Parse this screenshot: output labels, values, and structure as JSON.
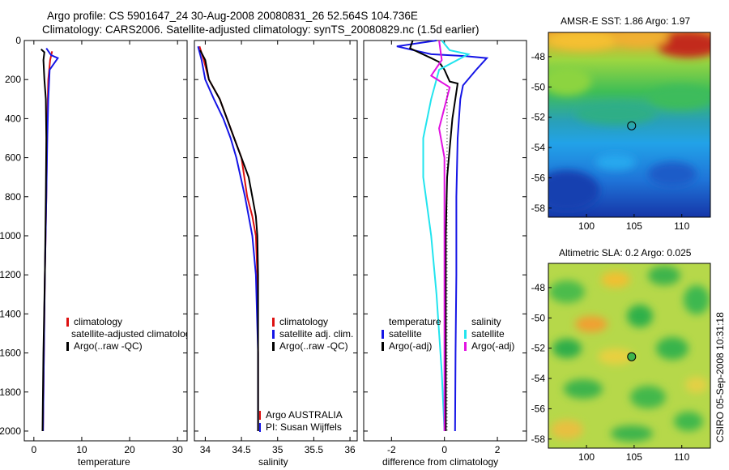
{
  "header": {
    "line1": "Argo profile: CS 5901647_24 30-Aug-2008 20080831_26 52.564S 104.736E",
    "line2": "Climatology: CARS2006. Satellite-adjusted climatology: synTS_20080829.nc (1.5d earlier)"
  },
  "stamp": "CSIRO 05-Sep-2008 10:31:18",
  "colors": {
    "red": "#dd1111",
    "blue": "#1515e6",
    "black": "#000000",
    "cyan": "#22e4ee",
    "magenta": "#e212e2"
  },
  "chart_data": [
    {
      "type": "line",
      "xlabel": "temperature",
      "x_ticks": [
        "0",
        "10",
        "20",
        "30"
      ],
      "xlim": [
        -2,
        32
      ],
      "ylim": [
        2050,
        0
      ],
      "y_ticks": [
        "0",
        "200",
        "400",
        "600",
        "800",
        "1000",
        "1200",
        "1400",
        "1600",
        "1800",
        "2000"
      ],
      "series": [
        {
          "name": "climatology",
          "color": "red",
          "points": [
            [
              3.8,
              55
            ],
            [
              3.4,
              100
            ],
            [
              3.0,
              200
            ],
            [
              2.8,
              400
            ],
            [
              2.6,
              800
            ],
            [
              2.3,
              1200
            ],
            [
              2.1,
              1600
            ],
            [
              1.9,
              2000
            ]
          ]
        },
        {
          "name": "satellite-adjusted climatology",
          "color": "blue",
          "points": [
            [
              2.6,
              40
            ],
            [
              3.6,
              75
            ],
            [
              5.0,
              90
            ],
            [
              3.3,
              150
            ],
            [
              3.0,
              300
            ],
            [
              2.8,
              500
            ],
            [
              2.6,
              800
            ],
            [
              2.3,
              1200
            ],
            [
              2.1,
              1600
            ],
            [
              1.9,
              2000
            ]
          ]
        },
        {
          "name": "Argo(..raw -QC)",
          "color": "black",
          "points": [
            [
              1.5,
              45
            ],
            [
              2.2,
              60
            ],
            [
              2.0,
              100
            ],
            [
              2.2,
              200
            ],
            [
              2.5,
              300
            ],
            [
              2.6,
              500
            ],
            [
              2.5,
              800
            ],
            [
              2.3,
              1200
            ],
            [
              2.0,
              1600
            ],
            [
              1.8,
              2000
            ]
          ]
        }
      ],
      "legend": {
        "entries": [
          "climatology",
          "satellite-adjusted climatology",
          "Argo(..raw -QC)"
        ]
      }
    },
    {
      "type": "line",
      "xlabel": "salinity",
      "x_ticks": [
        "34",
        "34.5",
        "35",
        "35.5",
        "36"
      ],
      "xlim": [
        33.85,
        36.1
      ],
      "ylim": [
        2050,
        0
      ],
      "y_ticks": [
        "0",
        "200",
        "400",
        "600",
        "800",
        "1000",
        "1200",
        "1400",
        "1600",
        "1800",
        "2000"
      ],
      "series": [
        {
          "name": "climatology",
          "color": "red",
          "points": [
            [
              33.92,
              30
            ],
            [
              33.98,
              100
            ],
            [
              34.05,
              200
            ],
            [
              34.2,
              300
            ],
            [
              34.3,
              400
            ],
            [
              34.4,
              500
            ],
            [
              34.5,
              600
            ],
            [
              34.58,
              800
            ],
            [
              34.65,
              900
            ],
            [
              34.7,
              1000
            ],
            [
              34.72,
              1200
            ],
            [
              34.73,
              1600
            ],
            [
              34.73,
              2000
            ]
          ]
        },
        {
          "name": "satellite adj. clim.",
          "color": "blue",
          "points": [
            [
              33.9,
              30
            ],
            [
              33.95,
              100
            ],
            [
              34.0,
              200
            ],
            [
              34.12,
              300
            ],
            [
              34.25,
              400
            ],
            [
              34.35,
              500
            ],
            [
              34.43,
              600
            ],
            [
              34.55,
              800
            ],
            [
              34.65,
              1000
            ],
            [
              34.7,
              1200
            ],
            [
              34.73,
              1600
            ],
            [
              34.73,
              2000
            ]
          ]
        },
        {
          "name": "Argo(..raw -QC)",
          "color": "black",
          "points": [
            [
              33.93,
              50
            ],
            [
              34.0,
              100
            ],
            [
              34.05,
              200
            ],
            [
              34.2,
              300
            ],
            [
              34.3,
              400
            ],
            [
              34.4,
              500
            ],
            [
              34.5,
              600
            ],
            [
              34.6,
              700
            ],
            [
              34.65,
              800
            ],
            [
              34.7,
              900
            ],
            [
              34.72,
              1000
            ],
            [
              34.73,
              1200
            ],
            [
              34.73,
              1600
            ],
            [
              34.73,
              2000
            ]
          ]
        }
      ],
      "legend": {
        "entries": [
          "climatology",
          "satellite adj. clim.",
          "Argo(..raw -QC)"
        ]
      },
      "annotation": {
        "line1": "Argo AUSTRALIA",
        "line2": "PI: Susan Wijffels"
      }
    },
    {
      "type": "line",
      "xlabel": "difference from climatology",
      "x_ticks": [
        "-2",
        "0",
        "2"
      ],
      "xlim": [
        -3.05,
        3.1
      ],
      "ylim": [
        2050,
        0
      ],
      "y_ticks": [
        "0",
        "200",
        "400",
        "600",
        "800",
        "1000",
        "1200",
        "1400",
        "1600",
        "1800",
        "2000"
      ],
      "series": [
        {
          "name": "temperature satellite",
          "color": "blue",
          "points": [
            [
              -0.3,
              0
            ],
            [
              -1.8,
              30
            ],
            [
              -0.5,
              70
            ],
            [
              0.8,
              80
            ],
            [
              1.6,
              90
            ],
            [
              1.2,
              150
            ],
            [
              0.7,
              230
            ],
            [
              0.6,
              300
            ],
            [
              0.5,
              500
            ],
            [
              0.45,
              800
            ],
            [
              0.45,
              1200
            ],
            [
              0.42,
              1600
            ],
            [
              0.4,
              2000
            ]
          ]
        },
        {
          "name": "temperature Argo(-adj)",
          "color": "black",
          "points": [
            [
              -1.2,
              0
            ],
            [
              -1.3,
              40
            ],
            [
              -0.5,
              90
            ],
            [
              -0.2,
              110
            ],
            [
              0.0,
              150
            ],
            [
              0.2,
              210
            ],
            [
              0.5,
              220
            ],
            [
              0.3,
              400
            ],
            [
              0.1,
              700
            ],
            [
              0.05,
              1000
            ],
            [
              0.05,
              1400
            ],
            [
              0.05,
              2000
            ]
          ]
        },
        {
          "name": "salinity satellite",
          "color": "cyan",
          "points": [
            [
              -0.1,
              0
            ],
            [
              0.2,
              50
            ],
            [
              0.9,
              70
            ],
            [
              -0.2,
              150
            ],
            [
              -0.5,
              300
            ],
            [
              -0.8,
              500
            ],
            [
              -0.8,
              700
            ],
            [
              -0.5,
              1000
            ],
            [
              -0.3,
              1300
            ],
            [
              -0.1,
              1700
            ],
            [
              0.0,
              2000
            ]
          ]
        },
        {
          "name": "salinity Argo(-adj)",
          "color": "magenta",
          "points": [
            [
              -0.2,
              0
            ],
            [
              -0.1,
              100
            ],
            [
              -0.5,
              180
            ],
            [
              0.2,
              240
            ],
            [
              -0.2,
              450
            ],
            [
              0.0,
              600
            ],
            [
              0.0,
              900
            ],
            [
              0.0,
              1400
            ],
            [
              0.0,
              2000
            ]
          ]
        }
      ],
      "legend": {
        "temp_header": "temperature",
        "sal_header": "salinity",
        "temp_entries": [
          "satellite",
          "Argo(-adj)"
        ],
        "sal_entries": [
          "satellite",
          "Argo(-adj)"
        ]
      }
    },
    {
      "type": "heatmap",
      "title": "AMSR-E SST: 1.86 Argo: 1.97",
      "x_ticks": [
        "100",
        "105",
        "110"
      ],
      "y_ticks": [
        "-48",
        "-50",
        "-52",
        "-54",
        "-56",
        "-58"
      ],
      "xlim": [
        96,
        113
      ],
      "ylim": [
        -58.6,
        -46.4
      ],
      "marker": {
        "x": 104.736,
        "y": -52.564
      }
    },
    {
      "type": "heatmap",
      "title": "Altimetric SLA: 0.2 Argo: 0.025",
      "x_ticks": [
        "100",
        "105",
        "110"
      ],
      "y_ticks": [
        "-48",
        "-50",
        "-52",
        "-54",
        "-56",
        "-58"
      ],
      "xlim": [
        96,
        113
      ],
      "ylim": [
        -58.6,
        -46.4
      ],
      "marker": {
        "x": 104.736,
        "y": -52.564
      }
    }
  ]
}
